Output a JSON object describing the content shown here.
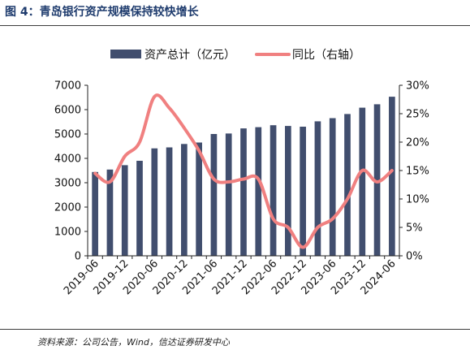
{
  "figure": {
    "title": "图  4：青岛银行资产规模保持较快增长",
    "source": "资料来源：公司公告，Wind，信达证券研发中心"
  },
  "colors": {
    "bar": "#414e6e",
    "line": "#f08080"
  },
  "chart_data": {
    "type": "bar",
    "categories": [
      "2019-06",
      "2019-09",
      "2019-12",
      "2020-03",
      "2020-06",
      "2020-09",
      "2020-12",
      "2021-03",
      "2021-06",
      "2021-09",
      "2021-12",
      "2022-03",
      "2022-06",
      "2022-09",
      "2022-12",
      "2023-03",
      "2023-06",
      "2023-09",
      "2023-12",
      "2024-03",
      "2024-06"
    ],
    "tick_labels": [
      "2019-06",
      "2019-12",
      "2020-06",
      "2020-12",
      "2021-06",
      "2021-12",
      "2022-06",
      "2022-12",
      "2023-06",
      "2023-12",
      "2024-06"
    ],
    "series": [
      {
        "name": "资产总计（亿元）",
        "type": "bar",
        "axis": "left",
        "values": [
          3440,
          3540,
          3720,
          3900,
          4410,
          4450,
          4590,
          4650,
          5000,
          5020,
          5230,
          5280,
          5360,
          5330,
          5300,
          5520,
          5650,
          5820,
          6080,
          6220,
          6530
        ]
      },
      {
        "name": "同比（右轴）",
        "type": "line",
        "axis": "right",
        "values": [
          14.5,
          13.0,
          17.5,
          20.0,
          28.0,
          26.0,
          22.5,
          18.5,
          13.5,
          13.0,
          13.5,
          13.5,
          6.5,
          5.0,
          1.5,
          5.0,
          6.5,
          10.0,
          15.0,
          13.0,
          15.0
        ]
      }
    ],
    "y_left": {
      "min": 0,
      "max": 7000,
      "step": 1000,
      "ticks": [
        "0",
        "1000",
        "2000",
        "3000",
        "4000",
        "5000",
        "6000",
        "7000"
      ]
    },
    "y_right": {
      "min": 0,
      "max": 30,
      "step": 5,
      "ticks": [
        "0%",
        "5%",
        "10%",
        "15%",
        "20%",
        "25%",
        "30%"
      ]
    },
    "legend": "top-center",
    "grid": false
  }
}
